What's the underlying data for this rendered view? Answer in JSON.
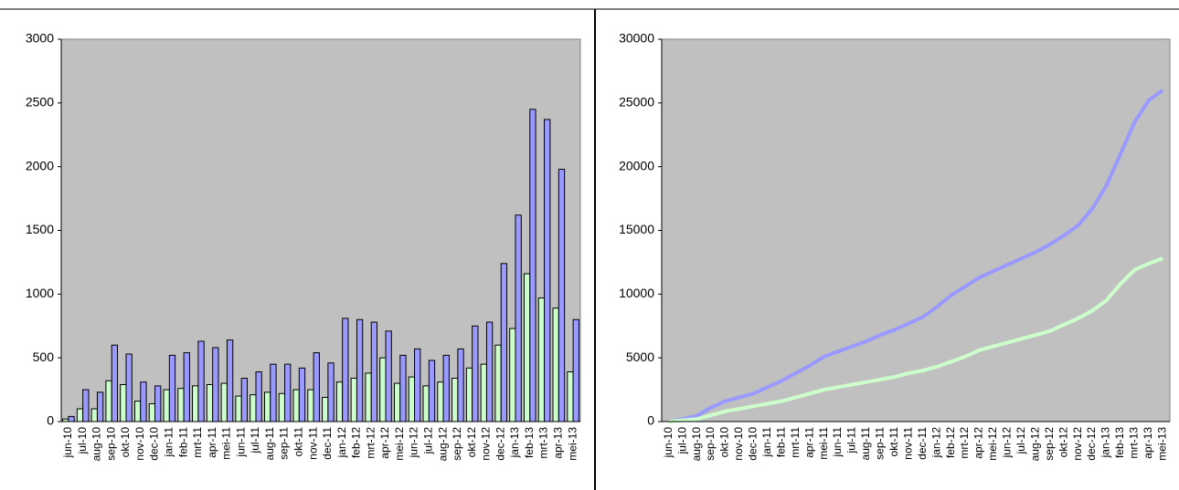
{
  "chart_data": [
    {
      "type": "bar",
      "categories": [
        "jun-10",
        "jul-10",
        "aug-10",
        "sep-10",
        "okt-10",
        "nov-10",
        "dec-10",
        "jan-11",
        "feb-11",
        "mrt-11",
        "apr-11",
        "mei-11",
        "jun-11",
        "jul-11",
        "aug-11",
        "sep-11",
        "okt-11",
        "nov-11",
        "dec-11",
        "jan-12",
        "feb-12",
        "mrt-12",
        "apr-12",
        "mei-12",
        "jun-12",
        "jul-12",
        "aug-12",
        "sep-12",
        "okt-12",
        "nov-12",
        "dec-12",
        "jan-13",
        "feb-13",
        "mrt-13",
        "apr-13",
        "mei-13"
      ],
      "series": [
        {
          "color": "#ccffcc",
          "values": [
            20,
            100,
            100,
            320,
            290,
            160,
            140,
            250,
            260,
            280,
            290,
            300,
            200,
            210,
            230,
            220,
            250,
            250,
            190,
            310,
            340,
            380,
            500,
            300,
            350,
            280,
            310,
            340,
            420,
            450,
            600,
            730,
            1160,
            970,
            890,
            390
          ]
        },
        {
          "color": "#9999ff",
          "values": [
            40,
            250,
            230,
            600,
            530,
            310,
            280,
            520,
            540,
            630,
            580,
            640,
            340,
            390,
            450,
            450,
            420,
            540,
            460,
            810,
            800,
            780,
            710,
            520,
            570,
            480,
            520,
            570,
            750,
            780,
            1240,
            1620,
            2450,
            2370,
            1980,
            800
          ]
        }
      ],
      "ylim": [
        0,
        3000
      ],
      "yticks": [
        0,
        500,
        1000,
        1500,
        2000,
        2500,
        3000
      ]
    },
    {
      "type": "line",
      "categories": [
        "jun-10",
        "jul-10",
        "aug-10",
        "sep-10",
        "okt-10",
        "nov-10",
        "dec-10",
        "jan-11",
        "feb-11",
        "mrt-11",
        "apr-11",
        "mei-11",
        "jun-11",
        "jul-11",
        "aug-11",
        "sep-11",
        "okt-11",
        "nov-11",
        "dec-11",
        "jan-12",
        "feb-12",
        "mrt-12",
        "apr-12",
        "mei-12",
        "jun-12",
        "jul-12",
        "aug-12",
        "sep-12",
        "okt-12",
        "nov-12",
        "dec-12",
        "jan-13",
        "feb-13",
        "mrt-13",
        "apr-13",
        "mei-13"
      ],
      "series": [
        {
          "color": "#9999ff",
          "values": [
            0,
            200,
            450,
            1100,
            1600,
            1900,
            2200,
            2700,
            3200,
            3800,
            4400,
            5100,
            5500,
            5900,
            6300,
            6800,
            7200,
            7700,
            8200,
            9000,
            9900,
            10600,
            11300,
            11800,
            12300,
            12800,
            13300,
            13900,
            14600,
            15400,
            16700,
            18500,
            21000,
            23500,
            25200,
            26000
          ]
        },
        {
          "color": "#ccffcc",
          "values": [
            0,
            100,
            200,
            500,
            800,
            1000,
            1200,
            1400,
            1600,
            1900,
            2200,
            2500,
            2700,
            2900,
            3100,
            3300,
            3500,
            3800,
            4000,
            4300,
            4700,
            5100,
            5600,
            5900,
            6200,
            6500,
            6800,
            7100,
            7600,
            8100,
            8700,
            9500,
            10800,
            11900,
            12400,
            12800
          ]
        }
      ],
      "ylim": [
        0,
        30000
      ],
      "yticks": [
        0,
        5000,
        10000,
        15000,
        20000,
        25000,
        30000
      ]
    }
  ]
}
